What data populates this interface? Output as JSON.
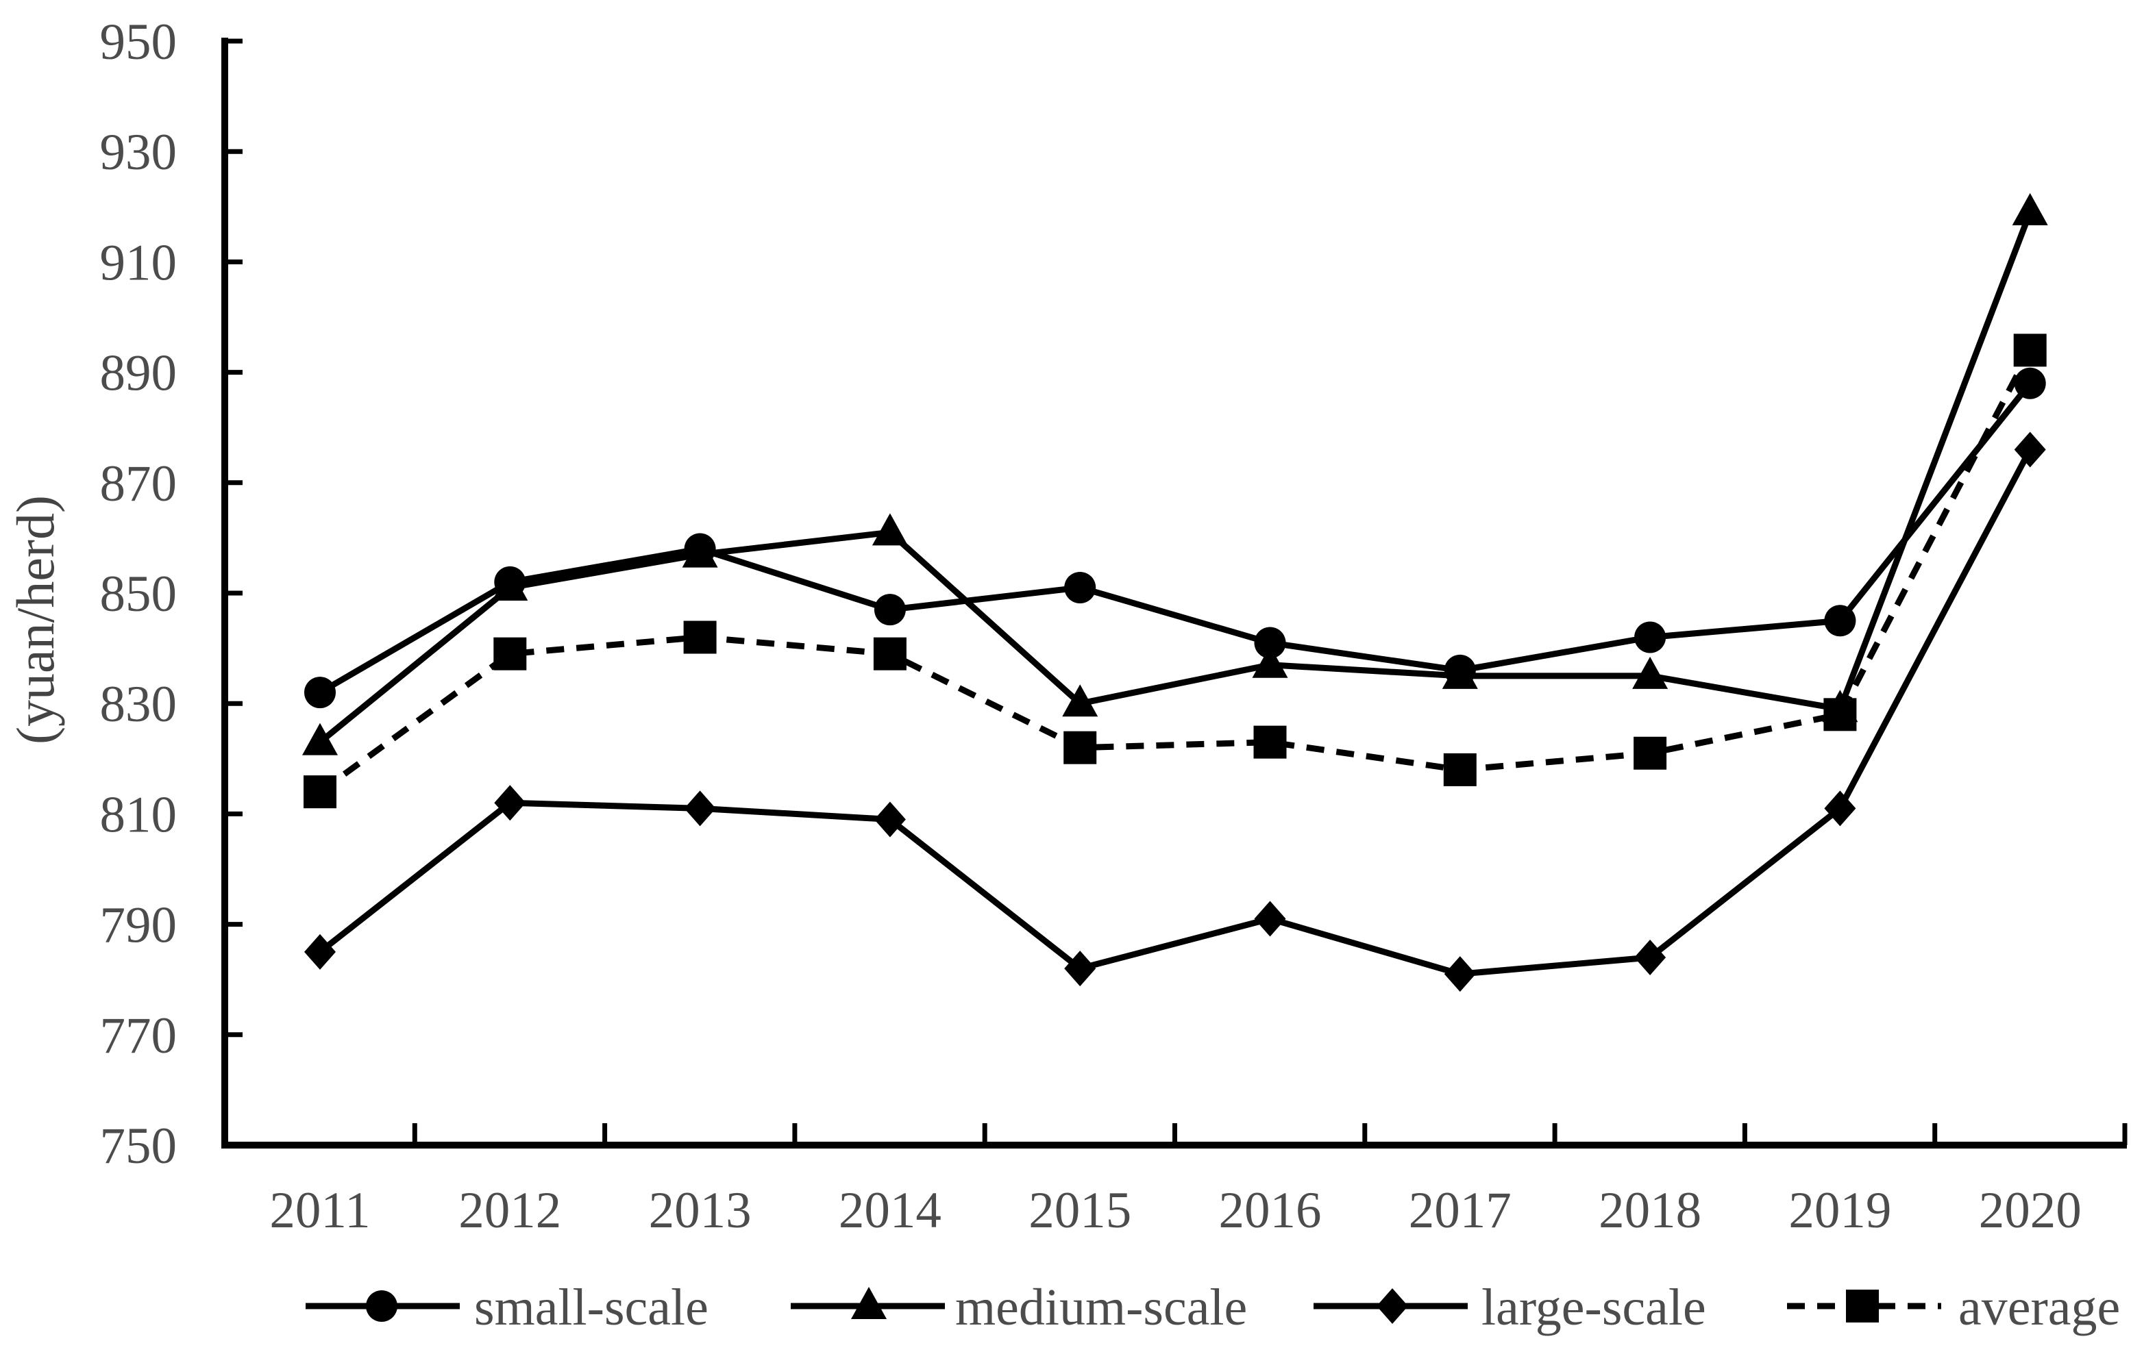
{
  "chart_data": {
    "type": "line",
    "title": "",
    "xlabel": "",
    "ylabel": "(yuan/herd)",
    "categories": [
      "2011",
      "2012",
      "2013",
      "2014",
      "2015",
      "2016",
      "2017",
      "2018",
      "2019",
      "2020"
    ],
    "yticks": [
      750,
      770,
      790,
      810,
      830,
      850,
      870,
      890,
      910,
      930,
      950
    ],
    "ylim": [
      750,
      950
    ],
    "grid": "off",
    "tick_direction": "in",
    "series": [
      {
        "name": "small-scale",
        "marker": "circle",
        "line": "solid",
        "values": [
          832,
          852,
          858,
          847,
          851,
          841,
          836,
          842,
          845,
          888
        ]
      },
      {
        "name": "medium-scale",
        "marker": "triangle",
        "line": "solid",
        "values": [
          823,
          851,
          857,
          861,
          830,
          837,
          835,
          835,
          829,
          919
        ]
      },
      {
        "name": "large-scale",
        "marker": "diamond",
        "line": "solid",
        "values": [
          785,
          812,
          811,
          809,
          782,
          791,
          781,
          784,
          811,
          876
        ]
      },
      {
        "name": "average",
        "marker": "square",
        "line": "dashed",
        "values": [
          814,
          839,
          842,
          839,
          822,
          823,
          818,
          821,
          828,
          894
        ]
      }
    ],
    "legend": {
      "position": "bottom",
      "labels": [
        "small-scale",
        "medium-scale",
        "large-scale",
        "average"
      ]
    },
    "colors": {
      "series": "#000000",
      "tick_label": "#4c4c4c",
      "background": "#ffffff"
    }
  }
}
